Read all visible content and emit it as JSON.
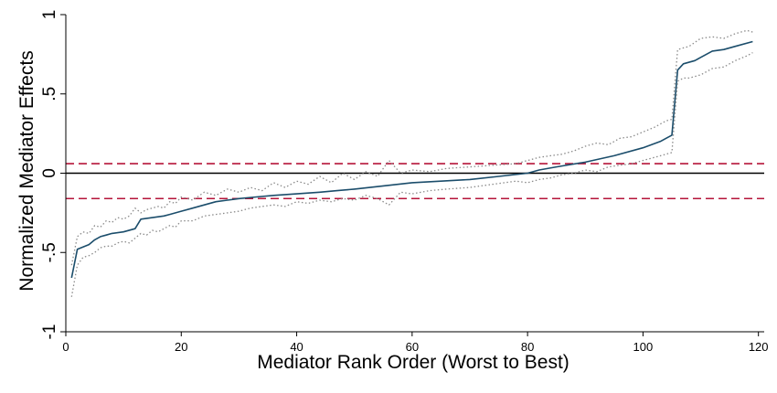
{
  "chart_data": {
    "type": "line",
    "xlabel": "Mediator Rank Order (Worst to Best)",
    "ylabel": "Normalized Mediator Effects",
    "xlim": [
      0,
      121
    ],
    "ylim": [
      -1,
      1
    ],
    "x_ticks": [
      0,
      20,
      40,
      60,
      80,
      100,
      120
    ],
    "x_tick_labels": [
      "0",
      "20",
      "40",
      "60",
      "80",
      "100",
      "120"
    ],
    "y_ticks": [
      1,
      0.5,
      0,
      -0.5,
      -1
    ],
    "y_tick_labels": [
      "1",
      ".5",
      "0",
      "-.5",
      "-1"
    ],
    "grid": false,
    "legend": "none",
    "reference_lines": [
      {
        "y": 0,
        "style": "solid",
        "color": "#000000"
      },
      {
        "y": 0.06,
        "style": "dashed",
        "color": "#b5153a"
      },
      {
        "y": -0.16,
        "style": "dashed",
        "color": "#b5153a"
      }
    ],
    "series": [
      {
        "role": "estimate",
        "color": "#1b4d6b",
        "style": "solid",
        "x": [
          1,
          2,
          4,
          5,
          6,
          7,
          8,
          10,
          12,
          13,
          15,
          17,
          18,
          20,
          22,
          24,
          26,
          28,
          30,
          33,
          36,
          40,
          44,
          47,
          50,
          55,
          60,
          65,
          70,
          75,
          80,
          82,
          85,
          90,
          95,
          100,
          103,
          104,
          105,
          106,
          107,
          109,
          110,
          112,
          114,
          116,
          119
        ],
        "y": [
          -0.66,
          -0.48,
          -0.45,
          -0.42,
          -0.4,
          -0.39,
          -0.38,
          -0.37,
          -0.35,
          -0.29,
          -0.28,
          -0.27,
          -0.26,
          -0.24,
          -0.22,
          -0.2,
          -0.18,
          -0.17,
          -0.16,
          -0.15,
          -0.14,
          -0.13,
          -0.12,
          -0.11,
          -0.1,
          -0.08,
          -0.06,
          -0.05,
          -0.04,
          -0.02,
          0.0,
          0.02,
          0.04,
          0.07,
          0.11,
          0.16,
          0.2,
          0.22,
          0.24,
          0.65,
          0.69,
          0.71,
          0.73,
          0.77,
          0.78,
          0.8,
          0.83
        ]
      },
      {
        "role": "upper-bound",
        "color": "#8a8a8a",
        "style": "dotted",
        "x": [
          1,
          2,
          3,
          4,
          5,
          6,
          7,
          8,
          9,
          10,
          11,
          12,
          13,
          14,
          15,
          16,
          17,
          18,
          19,
          20,
          22,
          24,
          26,
          28,
          30,
          32,
          34,
          36,
          38,
          40,
          42,
          44,
          46,
          48,
          50,
          52,
          54,
          56,
          58,
          60,
          63,
          66,
          70,
          74,
          78,
          80,
          82,
          84,
          86,
          88,
          90,
          92,
          94,
          96,
          98,
          100,
          102,
          104,
          105,
          106,
          107,
          108,
          110,
          112,
          114,
          116,
          118,
          119
        ],
        "y": [
          -0.58,
          -0.4,
          -0.37,
          -0.38,
          -0.33,
          -0.34,
          -0.3,
          -0.31,
          -0.28,
          -0.29,
          -0.27,
          -0.22,
          -0.25,
          -0.23,
          -0.22,
          -0.21,
          -0.22,
          -0.18,
          -0.19,
          -0.15,
          -0.17,
          -0.12,
          -0.14,
          -0.1,
          -0.12,
          -0.09,
          -0.11,
          -0.06,
          -0.09,
          -0.05,
          -0.07,
          -0.02,
          -0.06,
          0.0,
          -0.04,
          0.01,
          -0.02,
          0.08,
          0.0,
          0.02,
          0.01,
          0.03,
          0.04,
          0.05,
          0.06,
          0.08,
          0.1,
          0.11,
          0.12,
          0.14,
          0.17,
          0.19,
          0.18,
          0.22,
          0.23,
          0.26,
          0.29,
          0.33,
          0.34,
          0.78,
          0.79,
          0.8,
          0.85,
          0.86,
          0.85,
          0.88,
          0.9,
          0.89
        ]
      },
      {
        "role": "lower-bound",
        "color": "#8a8a8a",
        "style": "dotted",
        "x": [
          1,
          2,
          3,
          4,
          5,
          6,
          7,
          8,
          9,
          10,
          11,
          12,
          13,
          14,
          15,
          16,
          17,
          18,
          19,
          20,
          22,
          24,
          26,
          28,
          30,
          32,
          34,
          36,
          38,
          40,
          42,
          44,
          46,
          48,
          50,
          52,
          54,
          56,
          58,
          60,
          63,
          66,
          70,
          74,
          78,
          80,
          82,
          84,
          86,
          88,
          90,
          92,
          94,
          96,
          98,
          100,
          102,
          104,
          105,
          106,
          107,
          108,
          110,
          112,
          114,
          116,
          118,
          119
        ],
        "y": [
          -0.78,
          -0.58,
          -0.53,
          -0.52,
          -0.5,
          -0.47,
          -0.46,
          -0.46,
          -0.44,
          -0.43,
          -0.44,
          -0.41,
          -0.38,
          -0.39,
          -0.36,
          -0.37,
          -0.35,
          -0.33,
          -0.34,
          -0.3,
          -0.3,
          -0.27,
          -0.26,
          -0.25,
          -0.24,
          -0.22,
          -0.21,
          -0.2,
          -0.21,
          -0.18,
          -0.19,
          -0.17,
          -0.18,
          -0.16,
          -0.17,
          -0.14,
          -0.16,
          -0.2,
          -0.12,
          -0.13,
          -0.11,
          -0.1,
          -0.09,
          -0.07,
          -0.05,
          -0.06,
          -0.04,
          -0.03,
          -0.01,
          0.0,
          0.02,
          0.01,
          0.04,
          0.05,
          0.06,
          0.08,
          0.1,
          0.12,
          0.13,
          0.58,
          0.6,
          0.6,
          0.62,
          0.66,
          0.67,
          0.71,
          0.74,
          0.76
        ]
      }
    ]
  }
}
